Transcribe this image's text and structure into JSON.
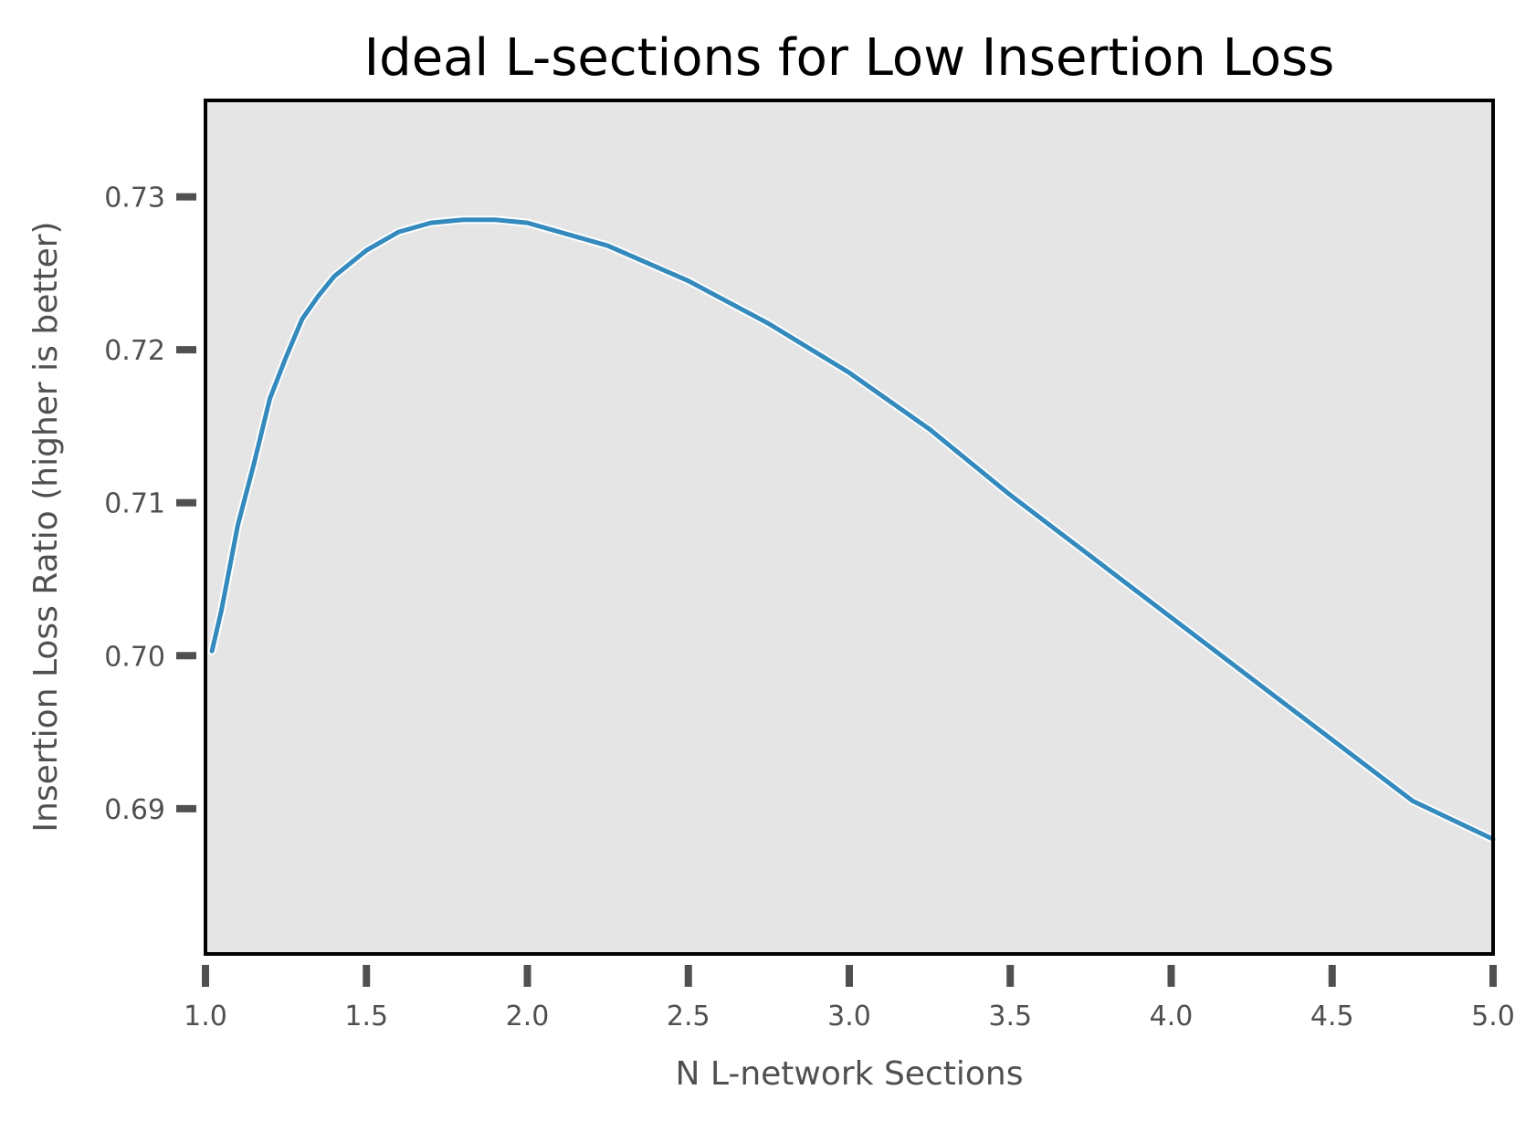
{
  "chart_data": {
    "type": "line",
    "title": "Ideal L-sections for Low Insertion Loss",
    "xlabel": "N L-network Sections",
    "ylabel": "Insertion Loss Ratio (higher is better)",
    "xlim": [
      1.0,
      5.0
    ],
    "ylim": [
      0.6805,
      0.7363
    ],
    "xticks": [
      "1.0",
      "1.5",
      "2.0",
      "2.5",
      "3.0",
      "3.5",
      "4.0",
      "4.5",
      "5.0"
    ],
    "yticks": [
      "0.69",
      "0.70",
      "0.71",
      "0.72",
      "0.73"
    ],
    "grid": false,
    "legend": "none",
    "series": [
      {
        "color": "#348abd",
        "x": [
          1.02,
          1.05,
          1.1,
          1.15,
          1.2,
          1.25,
          1.3,
          1.35,
          1.4,
          1.5,
          1.6,
          1.7,
          1.8,
          1.9,
          2.0,
          2.1,
          2.25,
          2.5,
          2.75,
          3.0,
          3.25,
          3.5,
          3.75,
          4.0,
          4.25,
          4.5,
          4.75,
          5.0
        ],
        "y": [
          0.7003,
          0.703,
          0.7085,
          0.7125,
          0.7168,
          0.7195,
          0.722,
          0.7235,
          0.7248,
          0.7265,
          0.7277,
          0.7283,
          0.7285,
          0.7285,
          0.7283,
          0.7277,
          0.7268,
          0.7245,
          0.7217,
          0.7185,
          0.7148,
          0.7105,
          0.7065,
          0.7025,
          0.6985,
          0.6945,
          0.6905,
          0.688
        ]
      }
    ]
  },
  "colors": {
    "plot_background": "#e5e5e5",
    "frame": "#000000",
    "tick_marks": "#505050"
  }
}
